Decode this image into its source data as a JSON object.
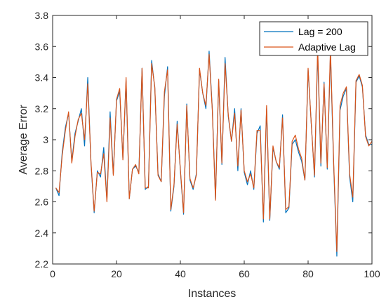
{
  "chart_data": {
    "type": "line",
    "xlabel": "Instances",
    "ylabel": "Average Error",
    "xlim": [
      0,
      100
    ],
    "ylim": [
      2.2,
      3.8
    ],
    "xticks": [
      0,
      20,
      40,
      60,
      80,
      100
    ],
    "yticks": [
      2.2,
      2.4,
      2.6,
      2.8,
      3,
      3.2,
      3.4,
      3.6,
      3.8
    ],
    "xtick_labels": [
      "0",
      "20",
      "40",
      "60",
      "80",
      "100"
    ],
    "ytick_labels": [
      "2.2",
      "2.4",
      "2.6",
      "2.8",
      "3",
      "3.2",
      "3.4",
      "3.6",
      "3.8"
    ],
    "grid": false,
    "legend_position": "top-right",
    "x": [
      1,
      2,
      3,
      4,
      5,
      6,
      7,
      8,
      9,
      10,
      11,
      12,
      13,
      14,
      15,
      16,
      17,
      18,
      19,
      20,
      21,
      22,
      23,
      24,
      25,
      26,
      27,
      28,
      29,
      30,
      31,
      32,
      33,
      34,
      35,
      36,
      37,
      38,
      39,
      40,
      41,
      42,
      43,
      44,
      45,
      46,
      47,
      48,
      49,
      50,
      51,
      52,
      53,
      54,
      55,
      56,
      57,
      58,
      59,
      60,
      61,
      62,
      63,
      64,
      65,
      66,
      67,
      68,
      69,
      70,
      71,
      72,
      73,
      74,
      75,
      76,
      77,
      78,
      79,
      80,
      81,
      82,
      83,
      84,
      85,
      86,
      87,
      88,
      89,
      90,
      91,
      92,
      93,
      94,
      95,
      96,
      97,
      98,
      99,
      100
    ],
    "series": [
      {
        "name": "Lag = 200",
        "color": "#0072BD",
        "values": [
          2.69,
          2.64,
          2.92,
          3.08,
          3.17,
          2.86,
          3.04,
          3.12,
          3.2,
          2.96,
          3.4,
          2.85,
          2.53,
          2.8,
          2.76,
          2.95,
          2.61,
          3.18,
          2.78,
          3.25,
          3.31,
          2.88,
          3.38,
          2.62,
          2.81,
          2.83,
          2.79,
          3.46,
          2.68,
          2.7,
          3.51,
          3.33,
          2.78,
          2.73,
          3.28,
          3.47,
          2.54,
          2.7,
          3.12,
          2.8,
          2.52,
          3.23,
          2.74,
          2.68,
          2.78,
          3.45,
          3.3,
          3.2,
          3.57,
          3.2,
          2.62,
          3.38,
          2.84,
          3.53,
          3.15,
          2.99,
          3.2,
          2.8,
          3.2,
          2.79,
          2.71,
          2.8,
          2.68,
          3.04,
          3.09,
          2.47,
          3.2,
          2.48,
          2.95,
          2.86,
          2.81,
          3.16,
          2.53,
          2.56,
          2.97,
          3.0,
          2.92,
          2.86,
          2.74,
          3.45,
          3.1,
          2.76,
          3.56,
          2.83,
          3.37,
          2.81,
          3.56,
          2.84,
          2.25,
          3.19,
          3.28,
          3.33,
          2.76,
          2.6,
          3.37,
          3.41,
          3.34,
          3.03,
          2.97,
          2.97
        ]
      },
      {
        "name": "Adaptive Lag",
        "color": "#D95319",
        "values": [
          2.69,
          2.66,
          2.9,
          3.06,
          3.18,
          2.85,
          3.02,
          3.13,
          3.17,
          3.0,
          3.36,
          2.86,
          2.54,
          2.79,
          2.78,
          2.91,
          2.6,
          3.14,
          2.77,
          3.26,
          3.33,
          2.87,
          3.4,
          2.62,
          2.81,
          2.84,
          2.78,
          3.46,
          2.69,
          2.69,
          3.49,
          3.34,
          2.77,
          2.73,
          3.31,
          3.45,
          2.55,
          2.71,
          3.1,
          2.81,
          2.53,
          3.22,
          2.75,
          2.69,
          2.77,
          3.46,
          3.3,
          3.22,
          3.55,
          3.19,
          2.61,
          3.39,
          2.85,
          3.49,
          3.16,
          2.99,
          3.17,
          2.83,
          3.19,
          2.8,
          2.73,
          2.78,
          2.69,
          3.06,
          3.06,
          2.49,
          3.22,
          2.49,
          2.96,
          2.86,
          2.82,
          3.14,
          2.55,
          2.57,
          2.99,
          3.03,
          2.94,
          2.88,
          2.74,
          3.46,
          3.1,
          2.77,
          3.59,
          2.85,
          3.36,
          2.82,
          3.59,
          2.86,
          2.28,
          3.22,
          3.3,
          3.34,
          2.78,
          2.63,
          3.38,
          3.42,
          3.35,
          3.02,
          2.96,
          2.99
        ]
      }
    ]
  }
}
